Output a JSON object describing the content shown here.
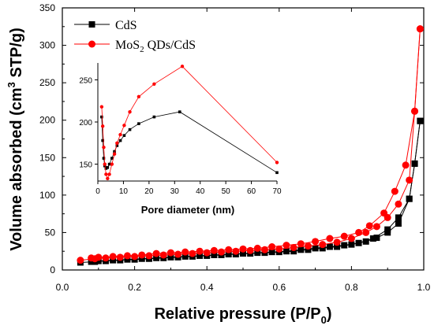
{
  "chart_data": [
    {
      "type": "line",
      "xlabel_main": "Relative pressure (P/P",
      "xlabel_sub": "0",
      "xlabel_end": ")",
      "ylabel_main": "Volume absorbed (cm",
      "ylabel_sup": "3",
      "ylabel_end": " STP/g)",
      "xlim": [
        0.0,
        1.0
      ],
      "ylim": [
        0,
        350
      ],
      "xticks": [
        "0.0",
        "0.2",
        "0.4",
        "0.6",
        "0.8",
        "1.0"
      ],
      "xtick_values": [
        0.0,
        0.2,
        0.4,
        0.6,
        0.8,
        1.0
      ],
      "yticks": [
        "0",
        "50",
        "100",
        "150",
        "200",
        "250",
        "300",
        "350"
      ],
      "ytick_values": [
        0,
        50,
        100,
        150,
        200,
        250,
        300,
        350
      ],
      "legend_position": "top-left",
      "grid": false,
      "series": [
        {
          "name": "CdS",
          "name_main": "CdS",
          "name_sub": "",
          "name_end": "",
          "color": "#000000",
          "marker": "square",
          "adsorption": [
            [
              0.05,
              10
            ],
            [
              0.09,
              11
            ],
            [
              0.12,
              12
            ],
            [
              0.16,
              13
            ],
            [
              0.2,
              14
            ],
            [
              0.24,
              15
            ],
            [
              0.28,
              16
            ],
            [
              0.32,
              17
            ],
            [
              0.36,
              18
            ],
            [
              0.4,
              19
            ],
            [
              0.44,
              20
            ],
            [
              0.48,
              21
            ],
            [
              0.52,
              22
            ],
            [
              0.56,
              23
            ],
            [
              0.6,
              24
            ],
            [
              0.64,
              25
            ],
            [
              0.68,
              27
            ],
            [
              0.72,
              29
            ],
            [
              0.76,
              31
            ],
            [
              0.8,
              34
            ],
            [
              0.84,
              38
            ],
            [
              0.87,
              43
            ],
            [
              0.9,
              50
            ],
            [
              0.93,
              62
            ],
            [
              0.96,
              95
            ],
            [
              0.975,
              142
            ],
            [
              0.99,
              199
            ]
          ],
          "desorption": [
            [
              0.99,
              199
            ],
            [
              0.975,
              142
            ],
            [
              0.96,
              95
            ],
            [
              0.93,
              70
            ],
            [
              0.9,
              54
            ],
            [
              0.86,
              42
            ],
            [
              0.82,
              36
            ],
            [
              0.78,
              33
            ],
            [
              0.74,
              31
            ],
            [
              0.7,
              29
            ],
            [
              0.66,
              27
            ],
            [
              0.62,
              25
            ],
            [
              0.58,
              24
            ],
            [
              0.54,
              23
            ],
            [
              0.5,
              22
            ],
            [
              0.46,
              21
            ],
            [
              0.42,
              20
            ],
            [
              0.38,
              19
            ],
            [
              0.34,
              18
            ],
            [
              0.3,
              17
            ],
            [
              0.26,
              16
            ],
            [
              0.22,
              15
            ],
            [
              0.18,
              14
            ],
            [
              0.14,
              13
            ],
            [
              0.1,
              12
            ],
            [
              0.08,
              11
            ]
          ]
        },
        {
          "name": "MoS2 QDs/CdS",
          "name_main": "MoS",
          "name_sub": "2",
          "name_end": " QDs/CdS",
          "color": "#ff0000",
          "marker": "circle",
          "adsorption": [
            [
              0.05,
              13
            ],
            [
              0.09,
              15
            ],
            [
              0.12,
              16
            ],
            [
              0.16,
              17
            ],
            [
              0.2,
              18
            ],
            [
              0.24,
              19
            ],
            [
              0.28,
              20
            ],
            [
              0.32,
              21
            ],
            [
              0.36,
              22
            ],
            [
              0.4,
              23
            ],
            [
              0.44,
              24
            ],
            [
              0.48,
              25
            ],
            [
              0.52,
              26
            ],
            [
              0.56,
              27
            ],
            [
              0.6,
              28
            ],
            [
              0.64,
              30
            ],
            [
              0.68,
              32
            ],
            [
              0.72,
              34
            ],
            [
              0.76,
              37
            ],
            [
              0.8,
              42
            ],
            [
              0.84,
              50
            ],
            [
              0.87,
              58
            ],
            [
              0.9,
              70
            ],
            [
              0.93,
              88
            ],
            [
              0.96,
              120
            ],
            [
              0.975,
              212
            ],
            [
              0.99,
              322
            ]
          ],
          "desorption": [
            [
              0.99,
              322
            ],
            [
              0.975,
              212
            ],
            [
              0.95,
              140
            ],
            [
              0.92,
              105
            ],
            [
              0.89,
              76
            ],
            [
              0.85,
              59
            ],
            [
              0.82,
              50
            ],
            [
              0.78,
              45
            ],
            [
              0.74,
              42
            ],
            [
              0.7,
              38
            ],
            [
              0.66,
              35
            ],
            [
              0.62,
              33
            ],
            [
              0.58,
              31
            ],
            [
              0.54,
              29
            ],
            [
              0.5,
              28
            ],
            [
              0.46,
              27
            ],
            [
              0.42,
              26
            ],
            [
              0.38,
              25
            ],
            [
              0.34,
              24
            ],
            [
              0.3,
              23
            ],
            [
              0.26,
              22
            ],
            [
              0.22,
              20
            ],
            [
              0.18,
              19
            ],
            [
              0.14,
              18
            ],
            [
              0.1,
              17
            ],
            [
              0.08,
              16
            ]
          ]
        }
      ]
    },
    {
      "type": "line",
      "inset": true,
      "xlabel": "Pore diameter (nm)",
      "xlim": [
        0,
        70
      ],
      "ylim": [
        130,
        270
      ],
      "xticks": [
        "0",
        "10",
        "20",
        "30",
        "40",
        "50",
        "60",
        "70"
      ],
      "xtick_values": [
        0,
        10,
        20,
        30,
        40,
        50,
        60,
        70
      ],
      "yticks": [
        "150",
        "200",
        "250"
      ],
      "ytick_values": [
        150,
        200,
        250
      ],
      "series": [
        {
          "name": "CdS",
          "color": "#000000",
          "marker": "square",
          "points": [
            [
              1.5,
              206
            ],
            [
              1.9,
              178
            ],
            [
              2.3,
              157
            ],
            [
              2.7,
              148
            ],
            [
              3.2,
              145
            ],
            [
              3.8,
              146
            ],
            [
              4.5,
              150
            ],
            [
              5.5,
              157
            ],
            [
              6.5,
              165
            ],
            [
              7.5,
              172
            ],
            [
              8.8,
              178
            ],
            [
              10.3,
              184
            ],
            [
              12.5,
              191
            ],
            [
              16,
              198
            ],
            [
              22,
              206
            ],
            [
              32,
              212
            ],
            [
              70,
              140
            ]
          ]
        },
        {
          "name": "MoS2 QDs/CdS",
          "color": "#ff0000",
          "marker": "circle",
          "points": [
            [
              1.5,
              218
            ],
            [
              1.9,
              195
            ],
            [
              2.3,
              170
            ],
            [
              2.7,
              150
            ],
            [
              3.2,
              138
            ],
            [
              3.8,
              133
            ],
            [
              4.5,
              138
            ],
            [
              5.5,
              150
            ],
            [
              6.5,
              162
            ],
            [
              7.5,
              175
            ],
            [
              8.8,
              185
            ],
            [
              10.3,
              196
            ],
            [
              12.5,
              212
            ],
            [
              16,
              230
            ],
            [
              22,
              245
            ],
            [
              33,
              266
            ],
            [
              70,
              152
            ]
          ]
        }
      ]
    }
  ]
}
